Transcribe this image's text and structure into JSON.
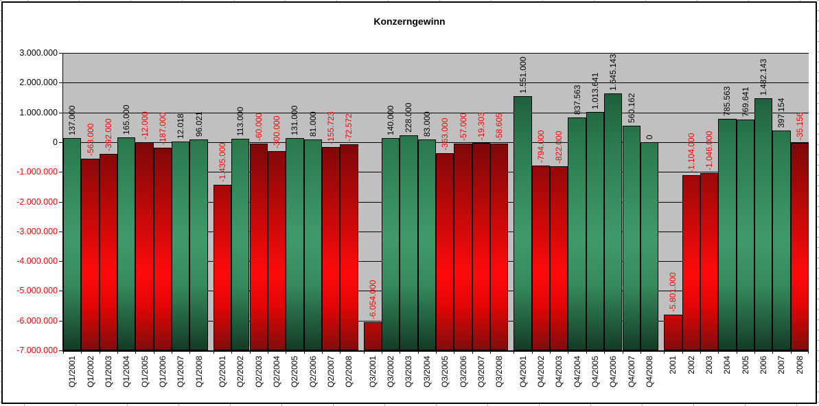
{
  "title": "Konzerngewinn",
  "chart_data": {
    "type": "bar",
    "title": "Konzerngewinn",
    "xlabel": "",
    "ylabel": "",
    "ylim": [
      -7000000,
      3000000
    ],
    "ytick_step": 1000000,
    "yticks": [
      "3.000.000",
      "2.000.000",
      "1.000.000",
      "0",
      "-1.000.000",
      "-2.000.000",
      "-3.000.000",
      "-4.000.000",
      "-5.000.000",
      "-6.000.000",
      "-7.000.000"
    ],
    "grid": true,
    "legend": false,
    "bar_base": -7000000,
    "note": "all bars rise from the chart bottom (-7.000.000) to their value; green = positive, red = negative",
    "groups": [
      {
        "categories": [
          "Q1/2001",
          "Q1/2002",
          "Q1/2003",
          "Q1/2004",
          "Q1/2005",
          "Q1/2006",
          "Q1/2007",
          "Q1/2008"
        ],
        "values": [
          137000,
          -563000,
          -392000,
          165000,
          -12000,
          -187000,
          12018,
          96021
        ],
        "value_labels": [
          "137.000",
          "-563.000",
          "-392.000",
          "165.000",
          "-12.000",
          "-187.000",
          "12.018",
          "96.021"
        ]
      },
      {
        "categories": [
          "Q2/2001",
          "Q2/2002",
          "Q2/2003",
          "Q2/2004",
          "Q2/2005",
          "Q2/2006",
          "Q2/2007",
          "Q2/2008"
        ],
        "values": [
          -1435000,
          113000,
          -60000,
          -300000,
          131000,
          81000,
          -155723,
          -72572
        ],
        "value_labels": [
          "-1.435.000",
          "113.000",
          "-60.000",
          "-300.000",
          "131.000",
          "81.000",
          "-155.723",
          "-72.572"
        ]
      },
      {
        "categories": [
          "Q3/2001",
          "Q3/2002",
          "Q3/2003",
          "Q3/2004",
          "Q3/2005",
          "Q3/2006",
          "Q3/2007",
          "Q3/2008"
        ],
        "values": [
          -6054000,
          140000,
          228000,
          83000,
          -363000,
          -57000,
          -19303,
          -58605
        ],
        "value_labels": [
          "-6.054.000",
          "140.000",
          "228.000",
          "83.000",
          "-363.000",
          "-57.000",
          "-19.303",
          "-58.605"
        ]
      },
      {
        "categories": [
          "Q4/2001",
          "Q4/2002",
          "Q4/2003",
          "Q4/2004",
          "Q4/2005",
          "Q4/2006",
          "Q4/2007",
          "Q4/2008"
        ],
        "values": [
          1551000,
          -794000,
          -822000,
          837563,
          1013641,
          1645143,
          560162,
          0
        ],
        "value_labels": [
          "1.551.000",
          "-794.000",
          "-822.000",
          "837.563",
          "1.013.641",
          "1.645.143",
          "560.162",
          "0"
        ]
      },
      {
        "categories": [
          "2001",
          "2002",
          "2003",
          "2004",
          "2005",
          "2006",
          "2007",
          "2008"
        ],
        "values": [
          -5801000,
          -1104000,
          -1046000,
          785563,
          769641,
          1482143,
          397154,
          -35156
        ],
        "value_labels": [
          "-5.801.000",
          "-1.104.000",
          "-1.046.000",
          "785.563",
          "769.641",
          "1.482.143",
          "397.154",
          "-35.156"
        ]
      }
    ],
    "colors": {
      "plot_background": "#C0C0C0",
      "positive_bar": "#2E8B57",
      "negative_bar": "#DD0000",
      "positive_label_text": "#000000",
      "negative_label_text": "#FF0000",
      "gridline": "#000000"
    }
  }
}
